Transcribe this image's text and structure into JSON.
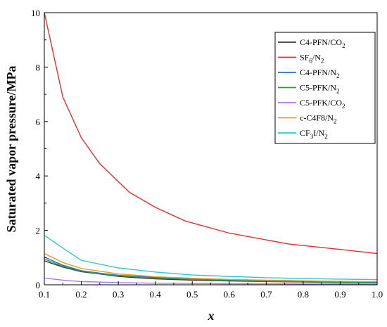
{
  "chart_data": {
    "type": "line",
    "title": "",
    "xlabel": "x",
    "ylabel": "Saturated vapor pressure/MPa",
    "xlim": [
      0.1,
      1.0
    ],
    "ylim": [
      0,
      10
    ],
    "xticks": [
      "0.1",
      "0.2",
      "0.3",
      "0.4",
      "0.5",
      "0.6",
      "0.7",
      "0.8",
      "0.9",
      "1.0"
    ],
    "yticks": [
      "0",
      "2",
      "4",
      "6",
      "8",
      "10"
    ],
    "legend_position": "top-right",
    "grid": false,
    "series": [
      {
        "name": "C4-PFN/CO₂",
        "label_base": "C4-PFN/CO",
        "label_sub": "2",
        "color": "#3a3a3a",
        "x": [
          0.1,
          0.15,
          0.2,
          0.25,
          0.3,
          0.35,
          0.4,
          0.5,
          0.6,
          0.7,
          0.8,
          0.9,
          1.0
        ],
        "y": [
          0.88,
          0.65,
          0.48,
          0.4,
          0.31,
          0.26,
          0.22,
          0.17,
          0.14,
          0.12,
          0.1,
          0.08,
          0.07
        ]
      },
      {
        "name": "SF₆/N₂",
        "label_parts": [
          "SF",
          "6",
          "/N",
          "2"
        ],
        "color": "#e03030",
        "x": [
          0.1,
          0.15,
          0.2,
          0.25,
          0.33,
          0.4,
          0.48,
          0.6,
          0.76,
          0.9,
          1.0
        ],
        "y": [
          10.0,
          6.9,
          5.4,
          4.45,
          3.4,
          2.85,
          2.35,
          1.9,
          1.5,
          1.3,
          1.15
        ]
      },
      {
        "name": "C4-PFN/N₂",
        "label_parts": [
          "C4-PFN/N",
          "2"
        ],
        "color": "#2a6fc9",
        "x": [
          0.1,
          0.15,
          0.2,
          0.25,
          0.3,
          0.4,
          0.5,
          0.6,
          0.7,
          0.8,
          0.9,
          1.0
        ],
        "y": [
          1.02,
          0.72,
          0.52,
          0.43,
          0.35,
          0.27,
          0.21,
          0.17,
          0.14,
          0.12,
          0.1,
          0.09
        ]
      },
      {
        "name": "C5-PFK/N₂",
        "label_parts": [
          "C5-PFK/N",
          "2"
        ],
        "color": "#2a9a58",
        "x": [
          0.1,
          0.15,
          0.2,
          0.25,
          0.3,
          0.4,
          0.5,
          0.6,
          0.7,
          0.8,
          0.9,
          1.0
        ],
        "y": [
          0.95,
          0.68,
          0.5,
          0.41,
          0.33,
          0.25,
          0.2,
          0.16,
          0.13,
          0.11,
          0.09,
          0.08
        ]
      },
      {
        "name": "C5-PFK/CO₂",
        "label_parts": [
          "C5-PFK/CO",
          "2"
        ],
        "color": "#a878e0",
        "x": [
          0.1,
          0.15,
          0.2,
          0.3,
          0.4,
          0.5,
          0.6,
          0.7,
          0.8,
          0.9,
          1.0
        ],
        "y": [
          0.25,
          0.17,
          0.12,
          0.08,
          0.06,
          0.05,
          0.04,
          0.035,
          0.03,
          0.025,
          0.02
        ]
      },
      {
        "name": "c-C4F8/N₂",
        "label_parts": [
          "c-C4F8/N",
          "2"
        ],
        "color": "#e0a020",
        "x": [
          0.1,
          0.15,
          0.2,
          0.25,
          0.3,
          0.4,
          0.5,
          0.6,
          0.7,
          0.8,
          0.9,
          1.0
        ],
        "y": [
          1.15,
          0.82,
          0.6,
          0.5,
          0.4,
          0.3,
          0.24,
          0.2,
          0.17,
          0.15,
          0.13,
          0.12
        ]
      },
      {
        "name": "CF₃I/N₂",
        "label_parts": [
          "CF",
          "3",
          "I/N",
          "2"
        ],
        "color": "#30c8d0",
        "x": [
          0.1,
          0.15,
          0.2,
          0.3,
          0.4,
          0.5,
          0.6,
          0.7,
          0.8,
          0.9,
          1.0
        ],
        "y": [
          1.82,
          1.35,
          0.9,
          0.62,
          0.47,
          0.36,
          0.31,
          0.26,
          0.23,
          0.21,
          0.19
        ]
      }
    ]
  }
}
